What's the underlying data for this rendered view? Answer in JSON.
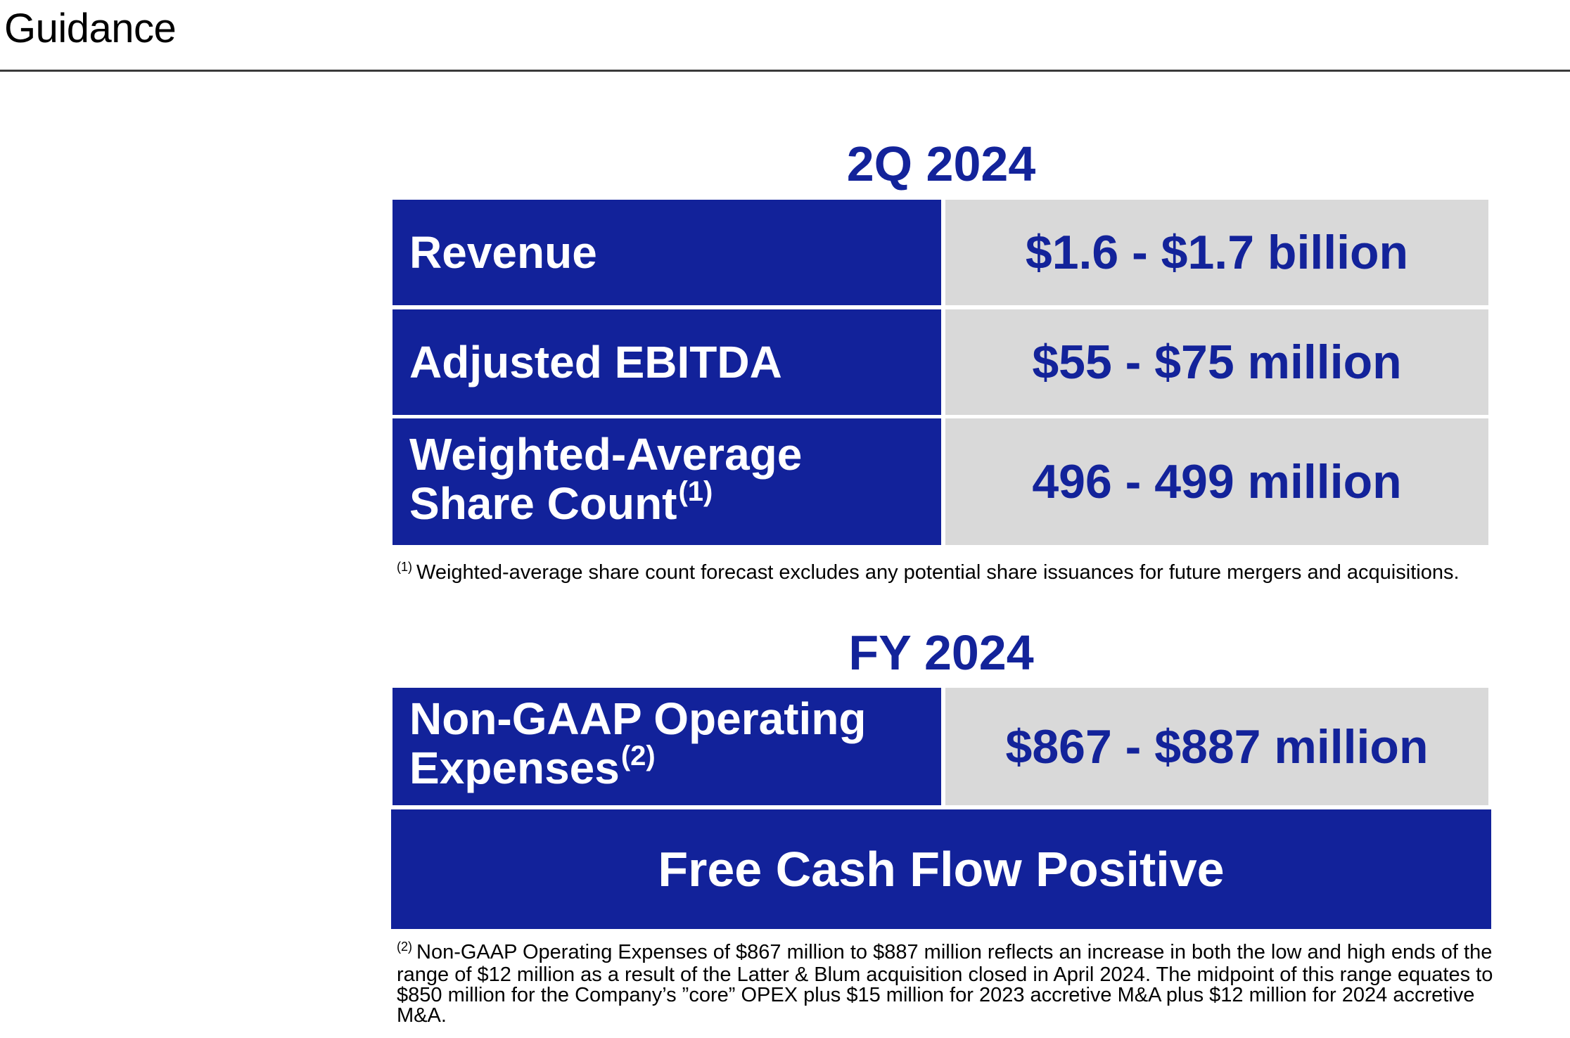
{
  "page": {
    "title": "Guidance"
  },
  "q2": {
    "heading": "2Q 2024",
    "rows": [
      {
        "label_line1": "Revenue",
        "label_line2": "",
        "marker": "",
        "value": "$1.6 - $1.7 billion"
      },
      {
        "label_line1": "Adjusted EBITDA",
        "label_line2": "",
        "marker": "",
        "value": "$55 - $75 million"
      },
      {
        "label_line1": "Weighted-Average",
        "label_line2": "Share Count",
        "marker": "(1)",
        "value": "496 - 499 million"
      }
    ],
    "footnote": {
      "marker": "(1)",
      "text": "Weighted-average share count forecast excludes any potential share issuances for future mergers and acquisitions."
    }
  },
  "fy": {
    "heading": "FY 2024",
    "rows": [
      {
        "label_line1": "Non-GAAP Operating",
        "label_line2": "Expenses",
        "marker": "(2)",
        "value": "$867 - $887 million"
      }
    ],
    "banner": "Free Cash Flow Positive",
    "footnote": {
      "marker": "(2)",
      "text": "Non-GAAP Operating Expenses of $867 million to $887 million reflects an increase in both the low and high ends of the range of $12 million as a result of the Latter & Blum acquisition closed in April 2024. The midpoint of this range equates to $850 million for the Company’s ”core” OPEX plus $15 million for 2023 accretive M&A plus $12 million for 2024 accretive M&A."
    }
  },
  "colors": {
    "brand_blue": "#12229a",
    "value_gray": "#d9d9d9"
  }
}
